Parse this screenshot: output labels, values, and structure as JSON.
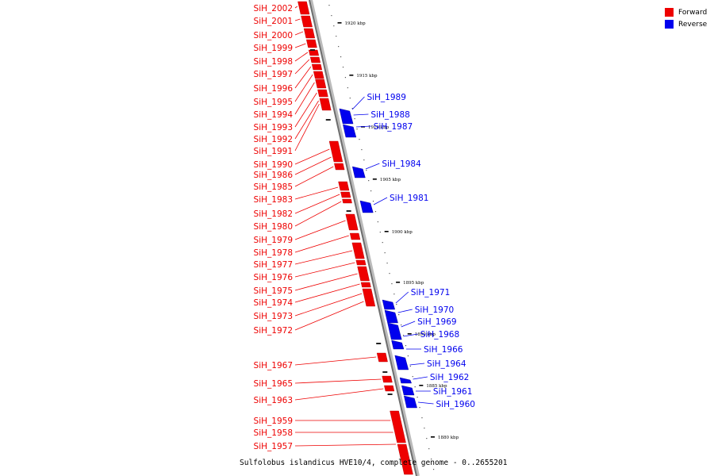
{
  "caption": "Sulfolobus islandicus HVE10/4, complete genome - 0..2655201",
  "legend": [
    {
      "label": "Forward",
      "color": "#ee0000"
    },
    {
      "label": "Reverse",
      "color": "#0000ee"
    }
  ],
  "colors": {
    "forward": "#ee0000",
    "reverse": "#0000ee",
    "backbone": "#888888"
  },
  "ticks": [
    "1920 kbp",
    "1915 kbp",
    "1910 kbp",
    "1905 kbp",
    "1900 kbp",
    "1895 kbp",
    "1890 kbp",
    "1885 kbp",
    "1880 kbp"
  ],
  "forward_genes": [
    "SiH_2002",
    "SiH_2001",
    "SiH_2000",
    "SiH_1999",
    "SiH_1998",
    "SiH_1997",
    "SiH_1996",
    "SiH_1995",
    "SiH_1994",
    "SiH_1993",
    "SiH_1992",
    "SiH_1991",
    "SiH_1990",
    "SiH_1986",
    "SiH_1985",
    "SiH_1983",
    "SiH_1982",
    "SiH_1980",
    "SiH_1979",
    "SiH_1978",
    "SiH_1977",
    "SiH_1976",
    "SiH_1975",
    "SiH_1974",
    "SiH_1973",
    "SiH_1972",
    "SiH_1967",
    "SiH_1965",
    "SiH_1963",
    "SiH_1959",
    "SiH_1958",
    "SiH_1957"
  ],
  "reverse_genes": [
    "SiH_1989",
    "SiH_1988",
    "SiH_1987",
    "SiH_1984",
    "SiH_1981",
    "SiH_1971",
    "SiH_1970",
    "SiH_1969",
    "SiH_1968",
    "SiH_1966",
    "SiH_1964",
    "SiH_1962",
    "SiH_1961",
    "SiH_1960"
  ]
}
